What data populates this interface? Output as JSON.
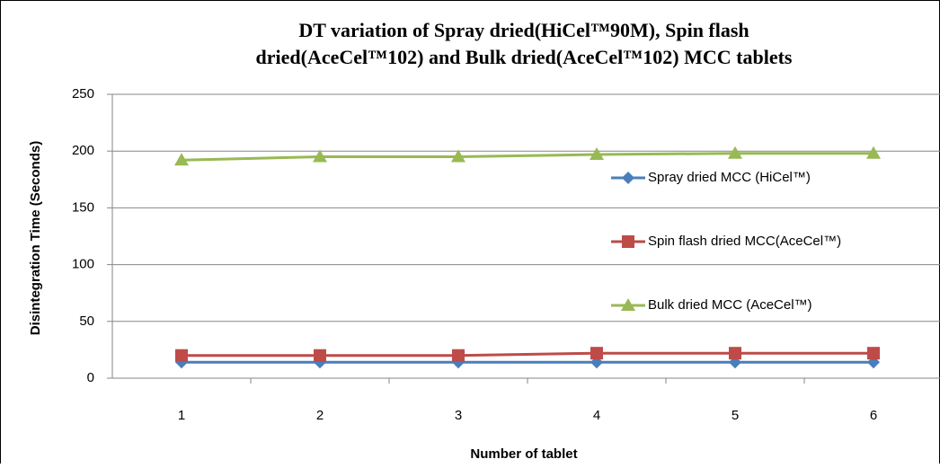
{
  "chart_data": {
    "type": "line",
    "title": [
      "DT variation of Spray dried(HiCel™90M), Spin flash",
      "dried(AceCel™102) and Bulk dried(AceCel™102) MCC tablets"
    ],
    "x_label": "Number of tablet",
    "y_label": "Disintegration Time (Seconds)",
    "categories": [
      "1",
      "2",
      "3",
      "4",
      "5",
      "6"
    ],
    "series": [
      {
        "name": "Spray dried MCC (HiCel™)",
        "color": "#4a7ebb",
        "marker": "diamond",
        "values": [
          14,
          14,
          14,
          14,
          14,
          14
        ]
      },
      {
        "name": "Spin flash  dried MCC(AceCel™)",
        "color": "#be4b48",
        "marker": "square",
        "values": [
          20,
          20,
          20,
          22,
          22,
          22
        ]
      },
      {
        "name": "Bulk dried MCC (AceCel™)",
        "color": "#98b954",
        "marker": "triangle",
        "values": [
          192,
          195,
          195,
          197,
          198,
          198
        ]
      }
    ],
    "ylim": [
      0,
      250
    ],
    "yticks": [
      0,
      50,
      100,
      150,
      200,
      250
    ],
    "grid": true,
    "legend": "right"
  }
}
